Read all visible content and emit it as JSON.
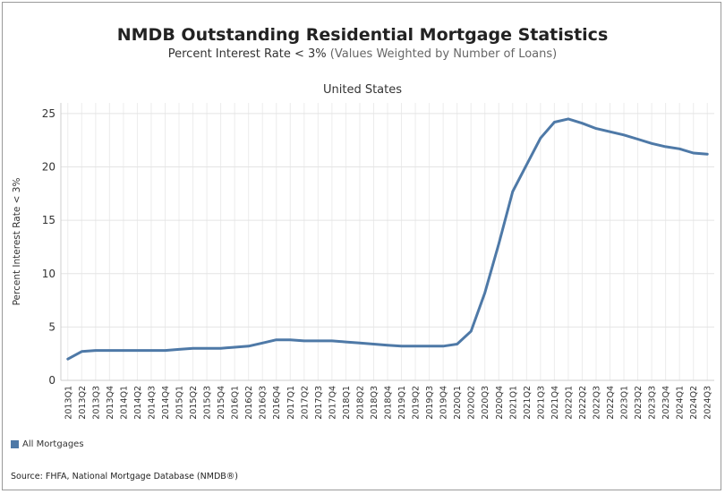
{
  "title_main": "NMDB Outstanding Residential Mortgage Statistics",
  "subtitle_main": "Percent Interest Rate < 3%",
  "subtitle_paren": "(Values Weighted by Number of Loans)",
  "panel_title": "United States",
  "legend_label": "All Mortgages",
  "source": "Source:  FHFA, National Mortgage Database (NMDB®)",
  "colors": {
    "series": "#4e79a7",
    "grid": "#ececec",
    "axis_text": "#333333"
  },
  "chart_data": {
    "type": "line",
    "title": "NMDB Outstanding Residential Mortgage Statistics",
    "subtitle": "Percent Interest Rate < 3% (Values Weighted by Number of Loans)",
    "panel": "United States",
    "xlabel": "",
    "ylabel": "Percent Interest Rate < 3%",
    "ylim": [
      0,
      26
    ],
    "yticks": [
      0,
      5,
      10,
      15,
      20,
      25
    ],
    "grid": true,
    "legend_position": "bottom-left",
    "categories": [
      "2013Q1",
      "2013Q2",
      "2013Q3",
      "2013Q4",
      "2014Q1",
      "2014Q2",
      "2014Q3",
      "2014Q4",
      "2015Q1",
      "2015Q2",
      "2015Q3",
      "2015Q4",
      "2016Q1",
      "2016Q2",
      "2016Q3",
      "2016Q4",
      "2017Q1",
      "2017Q2",
      "2017Q3",
      "2017Q4",
      "2018Q1",
      "2018Q2",
      "2018Q3",
      "2018Q4",
      "2019Q1",
      "2019Q2",
      "2019Q3",
      "2019Q4",
      "2020Q1",
      "2020Q2",
      "2020Q3",
      "2020Q4",
      "2021Q1",
      "2021Q2",
      "2021Q3",
      "2021Q4",
      "2022Q1",
      "2022Q2",
      "2022Q3",
      "2022Q4",
      "2023Q1",
      "2023Q2",
      "2023Q3",
      "2023Q4",
      "2024Q1",
      "2024Q2",
      "2024Q3"
    ],
    "series": [
      {
        "name": "All Mortgages",
        "values": [
          2.0,
          2.7,
          2.8,
          2.8,
          2.8,
          2.8,
          2.8,
          2.8,
          2.9,
          3.0,
          3.0,
          3.0,
          3.1,
          3.2,
          3.5,
          3.8,
          3.8,
          3.7,
          3.7,
          3.7,
          3.6,
          3.5,
          3.4,
          3.3,
          3.2,
          3.2,
          3.2,
          3.2,
          3.4,
          4.6,
          8.2,
          12.8,
          17.7,
          20.2,
          22.7,
          24.2,
          24.5,
          24.1,
          23.6,
          23.3,
          23.0,
          22.6,
          22.2,
          21.9,
          21.7,
          21.3,
          21.2
        ]
      }
    ]
  }
}
